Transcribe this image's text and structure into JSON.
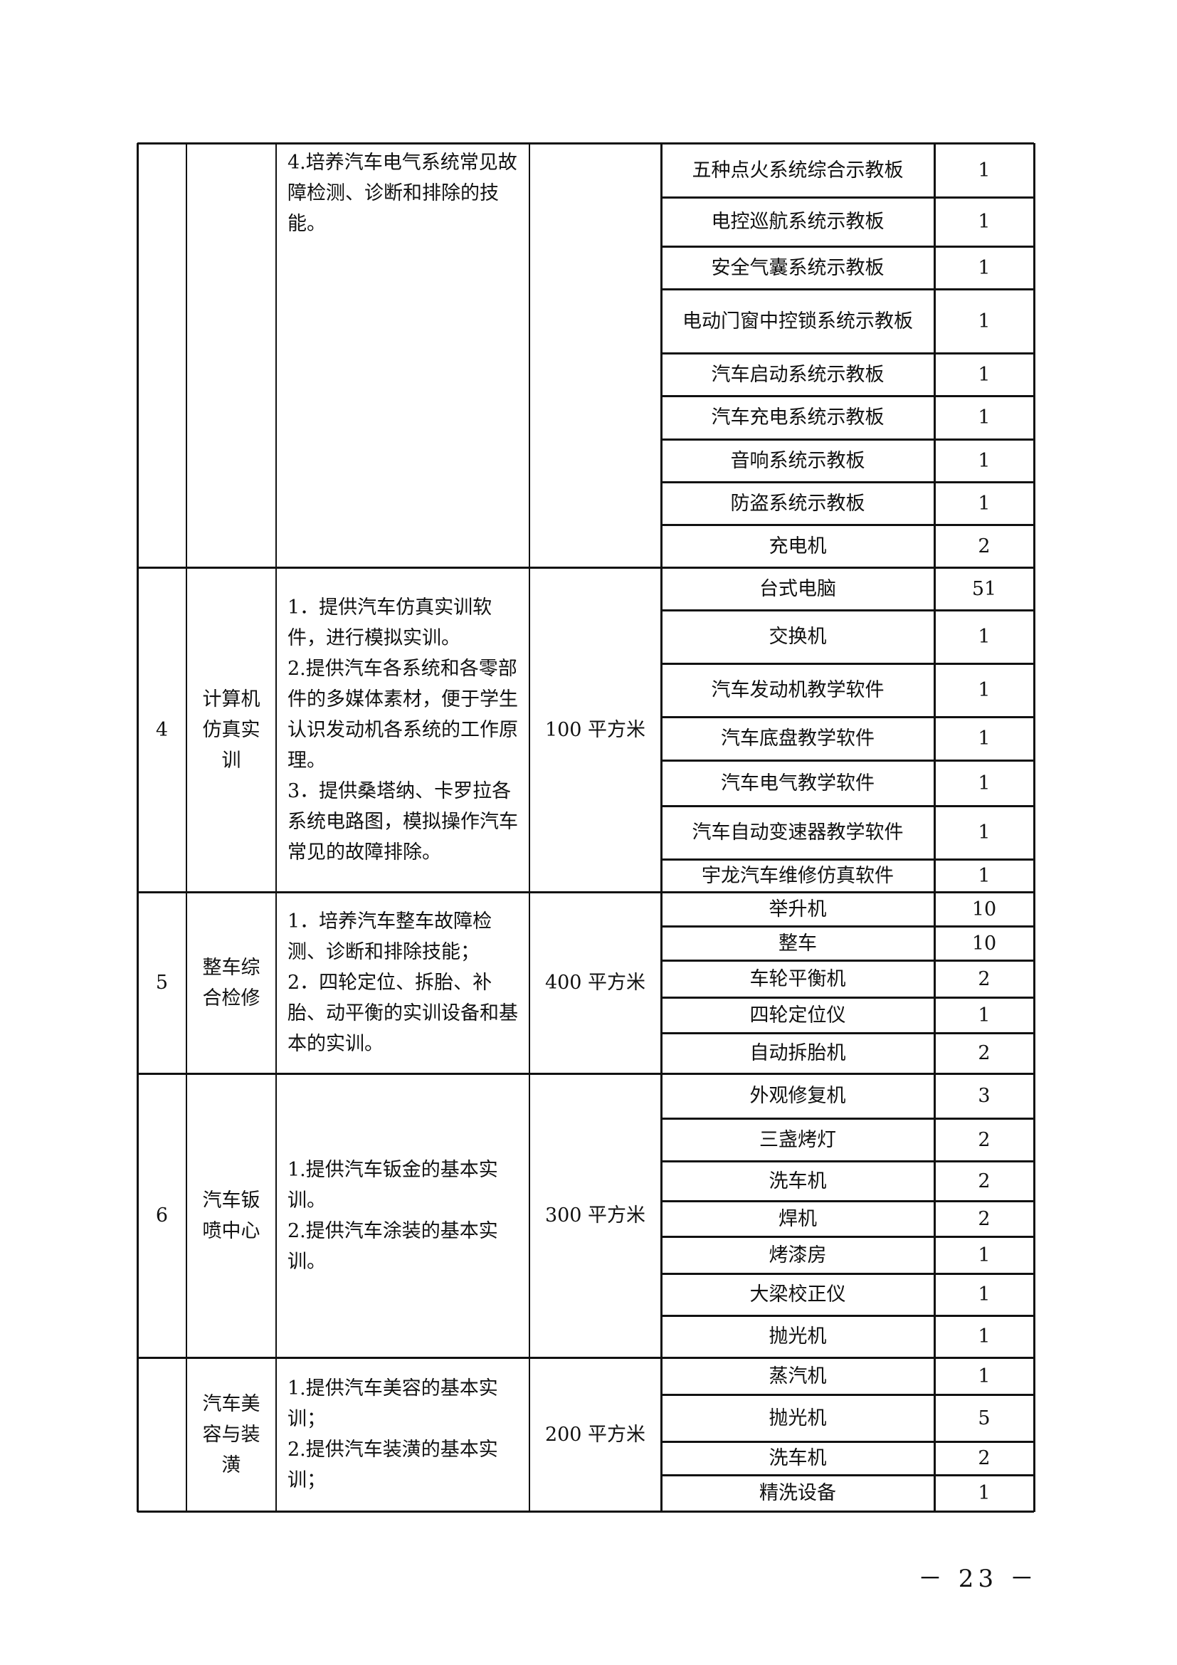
{
  "table": {
    "groups": [
      {
        "no": "",
        "name": "",
        "description": [
          "4.培养汽车电气系统常见故障检测、诊断和排除的技能。"
        ],
        "area": "",
        "equipment": [
          {
            "name": "五种点火系统综合示教板",
            "qty": "1"
          },
          {
            "name": "电控巡航系统示教板",
            "qty": "1"
          },
          {
            "name": "安全气囊系统示教板",
            "qty": "1"
          },
          {
            "name": "电动门窗中控锁系统示教板",
            "qty": "1"
          },
          {
            "name": "汽车启动系统示教板",
            "qty": "1"
          },
          {
            "name": "汽车充电系统示教板",
            "qty": "1"
          },
          {
            "name": "音响系统示教板",
            "qty": "1"
          },
          {
            "name": "防盗系统示教板",
            "qty": "1"
          },
          {
            "name": "充电机",
            "qty": "2"
          }
        ]
      },
      {
        "no": "4",
        "name": "计算机仿真实训",
        "description": [
          "1．提供汽车仿真实训软件，进行模拟实训。",
          "2.提供汽车各系统和各零部件的多媒体素材，便于学生认识发动机各系统的工作原理。",
          "3．提供桑塔纳、卡罗拉各系统电路图，模拟操作汽车常见的故障排除。"
        ],
        "area": "100 平方米",
        "equipment": [
          {
            "name": "台式电脑",
            "qty": "51"
          },
          {
            "name": "交换机",
            "qty": "1"
          },
          {
            "name": "汽车发动机教学软件",
            "qty": "1"
          },
          {
            "name": "汽车底盘教学软件",
            "qty": "1"
          },
          {
            "name": "汽车电气教学软件",
            "qty": "1"
          },
          {
            "name": "汽车自动变速器教学软件",
            "qty": "1"
          },
          {
            "name": "宇龙汽车维修仿真软件",
            "qty": "1"
          }
        ]
      },
      {
        "no": "5",
        "name": "整车综合检修",
        "description": [
          "1．培养汽车整车故障检测、诊断和排除技能；",
          "2．四轮定位、拆胎、补胎、动平衡的实训设备和基本的实训。"
        ],
        "area": "400 平方米",
        "equipment": [
          {
            "name": "举升机",
            "qty": "10"
          },
          {
            "name": "整车",
            "qty": "10"
          },
          {
            "name": "车轮平衡机",
            "qty": "2"
          },
          {
            "name": "四轮定位仪",
            "qty": "1"
          },
          {
            "name": "自动拆胎机",
            "qty": "2"
          }
        ]
      },
      {
        "no": "6",
        "name": "汽车钣喷中心",
        "description": [
          "1.提供汽车钣金的基本实训。",
          "2.提供汽车涂装的基本实训。"
        ],
        "area": "300 平方米",
        "equipment": [
          {
            "name": "外观修复机",
            "qty": "3"
          },
          {
            "name": "三盏烤灯",
            "qty": "2"
          },
          {
            "name": "洗车机",
            "qty": "2"
          },
          {
            "name": "焊机",
            "qty": "2"
          },
          {
            "name": "烤漆房",
            "qty": "1"
          },
          {
            "name": "大梁校正仪",
            "qty": "1"
          },
          {
            "name": "抛光机",
            "qty": "1"
          }
        ]
      },
      {
        "no": "",
        "name": "汽车美容与装潢",
        "description": [
          "1.提供汽车美容的基本实训；",
          "2.提供汽车装潢的基本实训；"
        ],
        "area": "200 平方米",
        "equipment": [
          {
            "name": "蒸汽机",
            "qty": "1"
          },
          {
            "name": "抛光机",
            "qty": "5"
          },
          {
            "name": "洗车机",
            "qty": "2"
          },
          {
            "name": "精洗设备",
            "qty": "1"
          }
        ]
      }
    ]
  },
  "footer": {
    "page_number": "－ 23 －"
  }
}
